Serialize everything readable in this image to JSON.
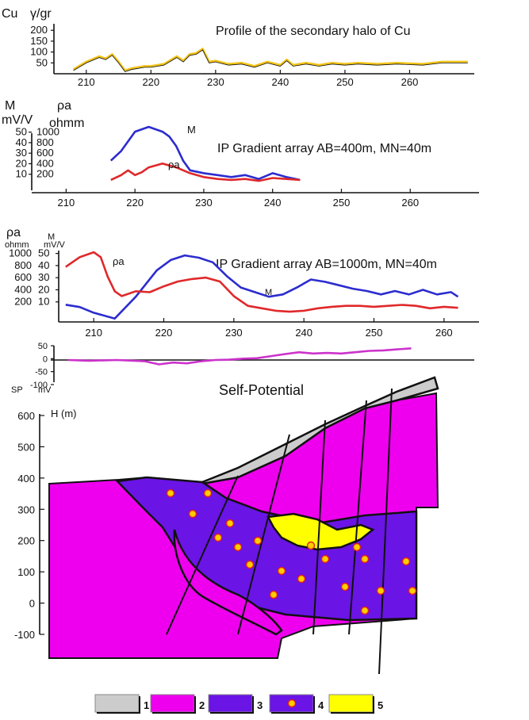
{
  "colors": {
    "cu_line": "#f2c318",
    "m_line": "#2c2ccf",
    "rho_line": "#e0282a",
    "sp_line": "#cc33cc",
    "layer1": "#cccccc",
    "layer2": "#ee00ee",
    "layer3": "#6a14e6",
    "layer5": "#ffff00",
    "ore_symbol": "#ffcc00"
  },
  "chart_data": [
    {
      "type": "line",
      "title": "Profile of the secondary halo of Cu",
      "y_unit_labels": [
        "Cu",
        "γ/gr"
      ],
      "xlim": [
        205,
        270
      ],
      "ylim": [
        0,
        230
      ],
      "x_ticks": [
        210,
        220,
        230,
        240,
        250,
        260
      ],
      "y_ticks": [
        50,
        100,
        150,
        200
      ],
      "series": [
        {
          "key": "cu",
          "x": [
            208,
            210,
            212,
            213,
            214,
            215,
            216,
            217,
            218,
            219,
            220,
            222,
            224,
            225,
            226,
            227,
            228,
            229,
            230,
            232,
            234,
            236,
            238,
            240,
            241,
            242,
            244,
            246,
            248,
            250,
            252,
            255,
            258,
            262,
            265,
            269
          ],
          "y": [
            20,
            55,
            80,
            70,
            90,
            55,
            15,
            25,
            30,
            35,
            35,
            45,
            80,
            60,
            90,
            95,
            115,
            55,
            60,
            45,
            50,
            35,
            55,
            40,
            65,
            40,
            50,
            40,
            50,
            45,
            50,
            45,
            50,
            45,
            55,
            55
          ]
        }
      ]
    },
    {
      "type": "line",
      "title": "IP Gradient array AB=400m, MN=40m",
      "y_unit_labels": [
        "M",
        "mV/V",
        "ρa",
        "ohmm"
      ],
      "xlim": [
        205,
        270
      ],
      "ylim": [
        0,
        60
      ],
      "x_ticks": [
        210,
        220,
        230,
        240,
        250,
        260
      ],
      "y_ticks_m": [
        10,
        20,
        30,
        40,
        50
      ],
      "y_ticks_rho": [
        200,
        400,
        600,
        800,
        1000
      ],
      "series": [
        {
          "key": "m",
          "label": "M",
          "x": [
            216.5,
            218,
            220,
            222,
            224,
            225,
            226,
            227,
            228,
            230,
            232,
            234,
            236,
            238,
            240,
            242,
            244
          ],
          "y": [
            25,
            35,
            55,
            60,
            55,
            50,
            40,
            25,
            15,
            12,
            10,
            8,
            10,
            6,
            12,
            8,
            5
          ]
        },
        {
          "key": "rho",
          "label": "ρa",
          "x": [
            216.5,
            218,
            219,
            220,
            221,
            222,
            224,
            226,
            228,
            230,
            232,
            234,
            236,
            238,
            240,
            242,
            244
          ],
          "y": [
            5,
            10,
            15,
            10,
            13,
            18,
            22,
            18,
            12,
            8,
            6,
            5,
            6,
            4,
            7,
            6,
            5
          ]
        }
      ]
    },
    {
      "type": "line",
      "title": "IP Gradient array AB=1000m, MN=40m",
      "y_unit_labels": [
        "ρa",
        "ohmm",
        "M",
        "mV/V"
      ],
      "xlim": [
        205,
        265
      ],
      "ylim": [
        0,
        55
      ],
      "x_ticks": [
        210,
        220,
        230,
        240,
        250,
        260
      ],
      "y_ticks_m": [
        10,
        20,
        30,
        40,
        50
      ],
      "y_ticks_rho": [
        200,
        400,
        600,
        800,
        1000
      ],
      "series": [
        {
          "key": "m",
          "label": "M",
          "x": [
            206,
            208,
            210,
            213,
            216,
            219,
            221,
            223,
            225,
            227,
            229,
            231,
            233,
            235,
            237,
            239,
            241,
            243,
            245,
            247,
            249,
            251,
            253,
            255,
            257,
            259,
            261,
            262
          ],
          "y": [
            5,
            3,
            -2,
            -7,
            12,
            35,
            44,
            48,
            46,
            42,
            30,
            20,
            16,
            12,
            14,
            20,
            27,
            25,
            22,
            19,
            17,
            14,
            17,
            14,
            18,
            14,
            16,
            12
          ]
        },
        {
          "key": "rho",
          "label": "ρa",
          "x": [
            206,
            208,
            210,
            211,
            212,
            213,
            214,
            216,
            218,
            220,
            222,
            224,
            226,
            228,
            230,
            232,
            234,
            236,
            238,
            240,
            242,
            244,
            246,
            248,
            250,
            252,
            254,
            256,
            258,
            260,
            262
          ],
          "y": [
            1000,
            1200,
            1300,
            1200,
            800,
            500,
            400,
            500,
            480,
            600,
            700,
            750,
            780,
            700,
            400,
            200,
            150,
            100,
            80,
            100,
            150,
            180,
            200,
            200,
            180,
            200,
            220,
            200,
            150,
            180,
            160
          ]
        }
      ],
      "annotations": [
        "M",
        "ρa"
      ]
    },
    {
      "type": "line",
      "title": "Self-Potential",
      "y_unit_labels": [
        "SP",
        "mV"
      ],
      "xlim": [
        205,
        265
      ],
      "ylim": [
        -100,
        50
      ],
      "y_ticks": [
        50,
        0,
        -50,
        -100
      ],
      "series": [
        {
          "key": "sp",
          "x": [
            207,
            210,
            214,
            218,
            220,
            222,
            224,
            226,
            228,
            230,
            232,
            234,
            236,
            238,
            240,
            242,
            244,
            246,
            248,
            250,
            252,
            254,
            256
          ],
          "y": [
            -5,
            -8,
            -5,
            -10,
            -22,
            -15,
            -18,
            -10,
            -5,
            -4,
            0,
            2,
            10,
            18,
            25,
            20,
            22,
            20,
            25,
            30,
            32,
            36,
            40
          ]
        }
      ]
    }
  ],
  "section": {
    "ylabel": "H (m)",
    "y_ticks": [
      600,
      500,
      400,
      300,
      200,
      100,
      0,
      -100
    ]
  },
  "legend": [
    {
      "num": "1"
    },
    {
      "num": "2"
    },
    {
      "num": "3"
    },
    {
      "num": "4"
    },
    {
      "num": "5"
    }
  ]
}
